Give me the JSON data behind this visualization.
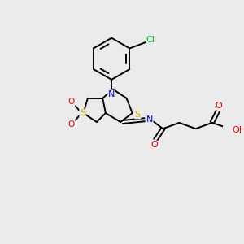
{
  "background_color": "#ebebeb",
  "atom_colors": {
    "C": "#000000",
    "N": "#0000ee",
    "S": "#ccaa00",
    "O": "#ee0000",
    "Cl": "#00bb00",
    "H": "#000000"
  },
  "bond_color": "#000000",
  "figsize": [
    3.0,
    3.0
  ],
  "dpi": 100
}
